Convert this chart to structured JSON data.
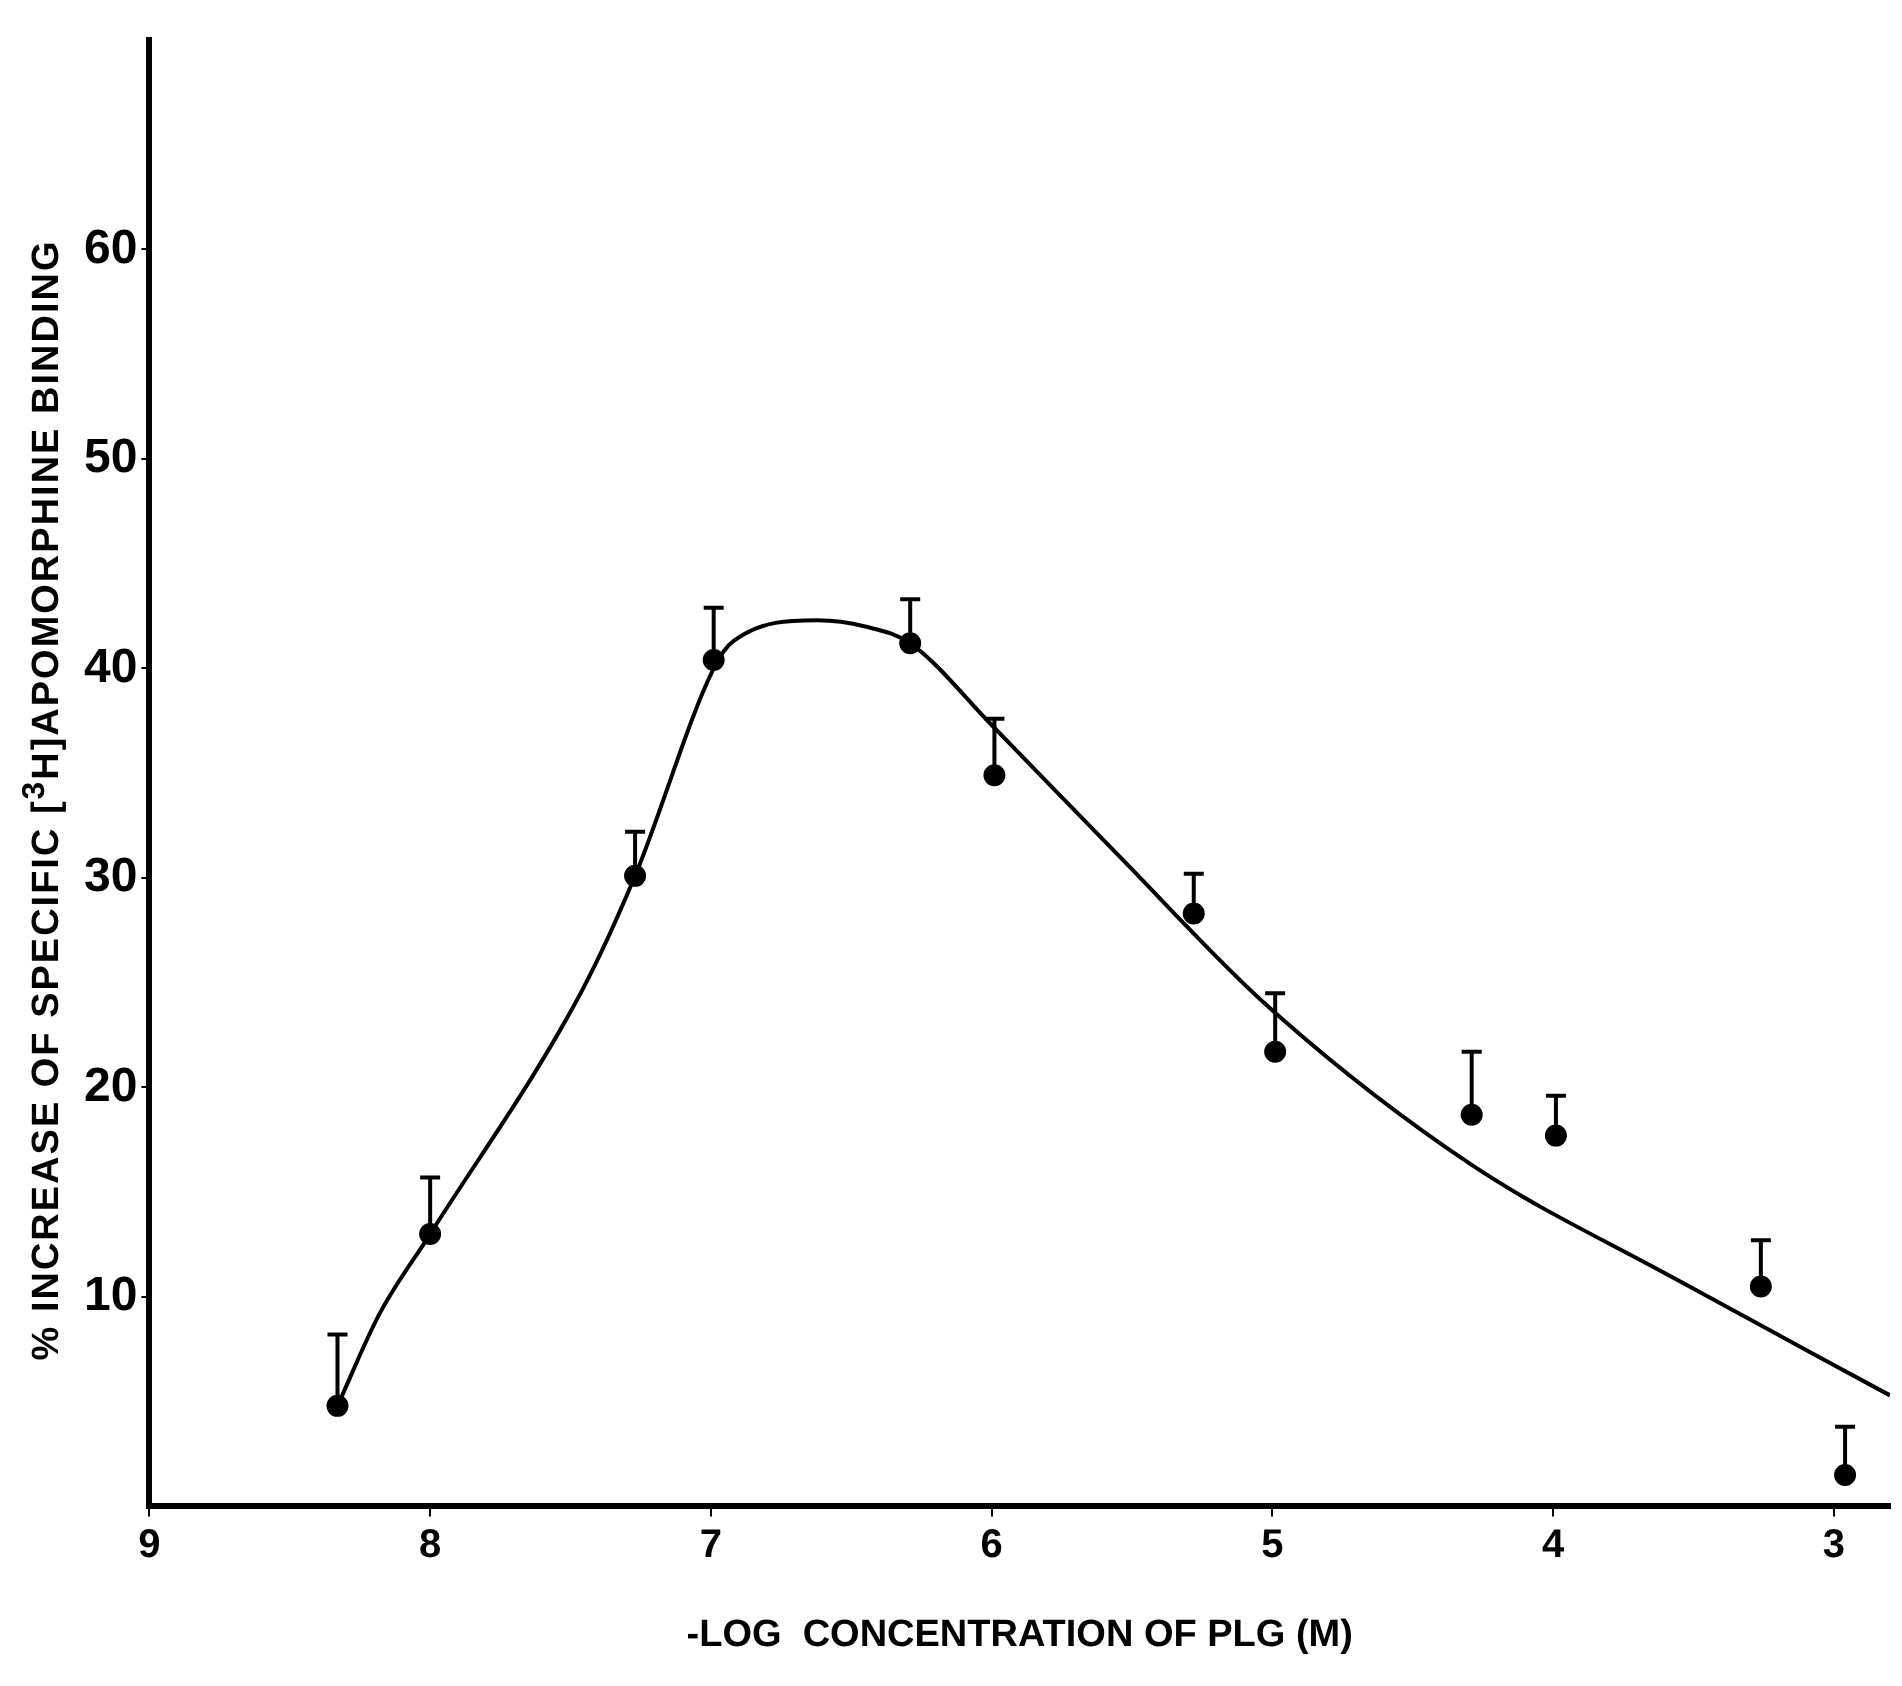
{
  "chart_data": {
    "type": "scatter",
    "xlabel": "-LOG  CONCENTRATION OF PLG (M)",
    "ylabel": "% INCREASE OF SPECIFIC [$^{3}$H]APOMORPHINE BINDING",
    "xlim": [
      9,
      2.8
    ],
    "xticks": [
      9,
      8,
      7,
      6,
      5,
      4,
      3
    ],
    "ylim": [
      0,
      70
    ],
    "yticks": [
      10,
      20,
      30,
      40,
      50,
      60
    ],
    "grid": false,
    "legend": false,
    "series": [
      {
        "type": "scatter",
        "color": "#000000",
        "marker": "circle",
        "x": [
          8.33,
          8.0,
          7.27,
          6.99,
          6.29,
          5.99,
          5.28,
          4.99,
          4.29,
          3.99,
          3.26,
          2.96
        ],
        "values": [
          4.8,
          13.0,
          30.1,
          40.4,
          41.2,
          34.9,
          28.3,
          21.7,
          18.7,
          17.7,
          10.5,
          1.5
        ],
        "errors": [
          [
            4.8,
            8.2
          ],
          [
            13.0,
            15.7
          ],
          [
            30.1,
            32.2
          ],
          [
            40.4,
            42.9
          ],
          [
            41.2,
            43.3
          ],
          [
            34.9,
            37.6
          ],
          [
            28.3,
            30.2
          ],
          [
            21.7,
            24.5
          ],
          [
            18.7,
            21.7
          ],
          [
            17.7,
            19.6
          ],
          [
            10.5,
            12.7
          ],
          [
            1.5,
            3.8
          ]
        ]
      },
      {
        "type": "line",
        "color": "#000000",
        "marker": "none",
        "line_style": "solid",
        "x": [
          8.33,
          8.18,
          8.0,
          7.46,
          7.27,
          6.99,
          6.92,
          6.62,
          6.45,
          6.29,
          6.0,
          5.55,
          5.01,
          4.29,
          3.57,
          2.8
        ],
        "values": [
          4.8,
          9.2,
          13.0,
          24.6,
          30.1,
          40.0,
          41.3,
          42.3,
          42.0,
          41.2,
          37.3,
          31.1,
          23.8,
          16.3,
          10.9,
          5.3
        ]
      }
    ]
  }
}
